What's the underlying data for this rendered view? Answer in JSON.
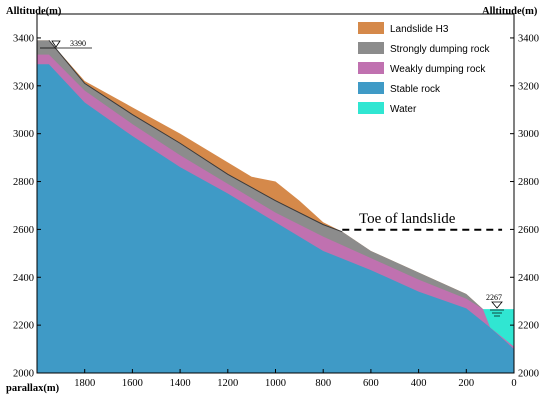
{
  "figure": {
    "left_axis_title": "Alltitude(m)",
    "right_axis_title": "Alltitude(m)",
    "x_axis_title": "parallax(m)",
    "y_ticks": [
      "2000",
      "2200",
      "2400",
      "2600",
      "2800",
      "3000",
      "3200",
      "3400"
    ],
    "x_ticks": [
      "1800",
      "1600",
      "1400",
      "1200",
      "1000",
      "800",
      "600",
      "400",
      "200",
      "0"
    ],
    "annotation": "Toe of landslide",
    "top_elevation_label": "3390",
    "water_elevation_label": "2267"
  },
  "legend": [
    {
      "label": "Landslide H3",
      "color": "#d5894a"
    },
    {
      "label": "Strongly dumping rock",
      "color": "#8c8c8c"
    },
    {
      "label": "Weakly dumping rock",
      "color": "#c071b0"
    },
    {
      "label": "Stable rock",
      "color": "#3f9ac6"
    },
    {
      "label": "Water",
      "color": "#30e6d2"
    }
  ],
  "colors": {
    "landslide": "#d5894a",
    "strong": "#8c8c8c",
    "weak": "#c071b0",
    "stable": "#3f9ac6",
    "water": "#30e6d2"
  },
  "chart_data": {
    "type": "area",
    "x_axis": {
      "label": "parallax(m)",
      "range": [
        2000,
        0
      ],
      "reversed": true
    },
    "y_axis": {
      "label": "Alltitude(m)",
      "range": [
        2000,
        3500
      ]
    },
    "surfaces": {
      "landslide_top": [
        [
          1950,
          3390
        ],
        [
          1800,
          3220
        ],
        [
          1600,
          3110
        ],
        [
          1400,
          3000
        ],
        [
          1200,
          2880
        ],
        [
          1100,
          2820
        ],
        [
          1000,
          2800
        ],
        [
          900,
          2720
        ],
        [
          800,
          2630
        ],
        [
          720,
          2590
        ],
        [
          600,
          2510
        ],
        [
          400,
          2420
        ],
        [
          200,
          2330
        ],
        [
          130,
          2267
        ]
      ],
      "strong_top": [
        [
          1950,
          3390
        ],
        [
          1800,
          3210
        ],
        [
          1600,
          3080
        ],
        [
          1400,
          2960
        ],
        [
          1200,
          2830
        ],
        [
          1000,
          2720
        ],
        [
          800,
          2620
        ],
        [
          720,
          2590
        ],
        [
          600,
          2510
        ],
        [
          400,
          2420
        ],
        [
          200,
          2330
        ],
        [
          130,
          2267
        ],
        [
          0,
          2130
        ]
      ],
      "weak_top": [
        [
          1950,
          3330
        ],
        [
          1800,
          3180
        ],
        [
          1600,
          3040
        ],
        [
          1400,
          2910
        ],
        [
          1200,
          2790
        ],
        [
          1000,
          2670
        ],
        [
          800,
          2570
        ],
        [
          600,
          2480
        ],
        [
          400,
          2390
        ],
        [
          200,
          2310
        ],
        [
          130,
          2267
        ],
        [
          0,
          2120
        ]
      ],
      "stable_top": [
        [
          1950,
          3290
        ],
        [
          1800,
          3130
        ],
        [
          1600,
          2990
        ],
        [
          1400,
          2860
        ],
        [
          1200,
          2750
        ],
        [
          1000,
          2630
        ],
        [
          800,
          2510
        ],
        [
          600,
          2430
        ],
        [
          400,
          2340
        ],
        [
          200,
          2270
        ],
        [
          100,
          2190
        ],
        [
          0,
          2100
        ]
      ]
    },
    "water_level": 2267,
    "toe_of_landslide": {
      "x": 720,
      "y": 2590
    }
  }
}
